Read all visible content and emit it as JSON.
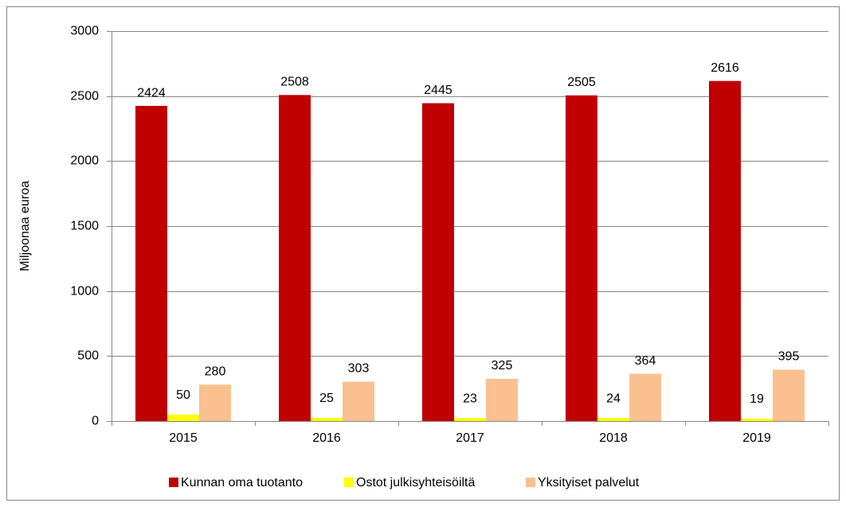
{
  "chart_data": {
    "type": "bar",
    "y_label": "Miljoonaa euroa",
    "categories": [
      "2015",
      "2016",
      "2017",
      "2018",
      "2019"
    ],
    "series": [
      {
        "name": "Kunnan oma tuotanto",
        "color": "#c00000",
        "values": [
          2424,
          2508,
          2445,
          2505,
          2616
        ]
      },
      {
        "name": "Ostot julkisyhteisöiltä",
        "color": "#ffff00",
        "values": [
          50,
          25,
          23,
          24,
          19
        ]
      },
      {
        "name": "Yksityiset palvelut",
        "color": "#fac090",
        "values": [
          280,
          303,
          325,
          364,
          395
        ]
      }
    ],
    "ylim": [
      0,
      3000
    ],
    "yticks": [
      0,
      500,
      1000,
      1500,
      2000,
      2500,
      3000
    ],
    "grid": true,
    "legend": "bottom"
  }
}
